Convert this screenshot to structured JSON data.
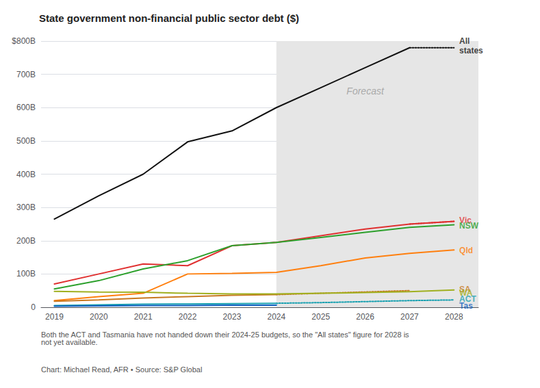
{
  "chart_data": {
    "type": "line",
    "title": "State government non-financial public sector debt ($)",
    "footnotes": [
      "Both the ACT and Tasmania have not handed down their 2024-25 budgets, so the \"All states\" figure for 2028 is\nnot yet available.",
      "Chart: Michael Read, AFR • Source: S&P Global"
    ],
    "x": [
      2019,
      2020,
      2021,
      2022,
      2023,
      2024,
      2025,
      2026,
      2027,
      2028
    ],
    "xlim": [
      2018.7,
      2028.55
    ],
    "xticks": [
      2019,
      2020,
      2021,
      2022,
      2023,
      2024,
      2025,
      2026,
      2027,
      2028
    ],
    "ylim": [
      0,
      800
    ],
    "yticks": [
      0,
      {
        "value": 100,
        "label": "100B"
      },
      {
        "value": 200,
        "label": "200B"
      },
      {
        "value": 300,
        "label": "300B"
      },
      {
        "value": 400,
        "label": "400B"
      },
      {
        "value": 500,
        "label": "500B"
      },
      {
        "value": 600,
        "label": "600B"
      },
      {
        "value": 700,
        "label": "700B"
      },
      {
        "value": 800,
        "label": "$800B"
      }
    ],
    "grid": true,
    "shaded_region": {
      "from": 2024,
      "to": 2028.55,
      "color": "#e6e6e6",
      "label": "Forecast",
      "label_x": 2026,
      "label_y": 650
    },
    "series": [
      {
        "name": "All states",
        "color": "#111111",
        "line_style": "solid",
        "values": [
          265,
          335,
          400,
          497,
          530,
          600,
          660,
          720,
          780,
          null
        ]
      },
      {
        "name": "All states",
        "color": "#111111",
        "line_style": "dotted",
        "values": [
          null,
          null,
          null,
          null,
          null,
          null,
          null,
          null,
          780,
          780
        ]
      },
      {
        "name": "Vic",
        "color": "#e03030",
        "line_style": "solid",
        "values": [
          70,
          100,
          130,
          125,
          185,
          195,
          215,
          235,
          250,
          258
        ]
      },
      {
        "name": "Vic",
        "color": "#e03030",
        "line_style": "dotted",
        "values": [
          null,
          null,
          null,
          null,
          null,
          null,
          null,
          null,
          250,
          258
        ]
      },
      {
        "name": "NSW",
        "color": "#2ca02c",
        "line_style": "solid",
        "values": [
          55,
          80,
          115,
          140,
          185,
          195,
          210,
          225,
          240,
          248
        ]
      },
      {
        "name": "Qld",
        "color": "#ff7f0e",
        "line_style": "solid",
        "values": [
          20,
          32,
          42,
          100,
          102,
          105,
          125,
          148,
          162,
          172
        ]
      },
      {
        "name": "SA",
        "color": "#c87820",
        "line_style": "solid",
        "values": [
          18,
          22,
          28,
          32,
          36,
          38,
          null,
          null,
          null,
          null
        ]
      },
      {
        "name": "SA",
        "color": "#c87820",
        "line_style": "dotted",
        "values": [
          null,
          null,
          null,
          null,
          null,
          38,
          42,
          46,
          50,
          null
        ]
      },
      {
        "name": "WA",
        "color": "#a0b020",
        "line_style": "solid",
        "values": [
          48,
          46,
          45,
          42,
          40,
          40,
          42,
          44,
          47,
          52
        ]
      },
      {
        "name": "ACT",
        "color": "#17a0b0",
        "line_style": "solid",
        "values": [
          5,
          7,
          9,
          10,
          11,
          12,
          null,
          null,
          null,
          null
        ]
      },
      {
        "name": "ACT",
        "color": "#17a0b0",
        "line_style": "dotted",
        "values": [
          null,
          null,
          null,
          null,
          null,
          12,
          14,
          17,
          20,
          22
        ]
      },
      {
        "name": "Tas",
        "color": "#1060c0",
        "line_style": "solid",
        "values": [
          3,
          4,
          5,
          5,
          6,
          6,
          null,
          null,
          null,
          null
        ]
      }
    ],
    "annotations": [
      {
        "text": "All\nstates",
        "x": 2028.12,
        "y": 785,
        "color": "#111111"
      },
      {
        "text": "Vic",
        "x": 2028.12,
        "y": 261,
        "color": "#e03030"
      },
      {
        "text": "NSW",
        "x": 2028.12,
        "y": 244,
        "color": "#2ca02c"
      },
      {
        "text": "Qld",
        "x": 2028.12,
        "y": 170,
        "color": "#ff7f0e"
      },
      {
        "text": "SA",
        "x": 2028.12,
        "y": 54,
        "color": "#c87820"
      },
      {
        "text": "WA",
        "x": 2028.12,
        "y": 44,
        "color": "#a0b020"
      },
      {
        "text": "ACT",
        "x": 2028.12,
        "y": 25,
        "color": "#17a0b0"
      },
      {
        "text": "Tas",
        "x": 2028.12,
        "y": 5,
        "color": "#1060c0"
      }
    ]
  }
}
